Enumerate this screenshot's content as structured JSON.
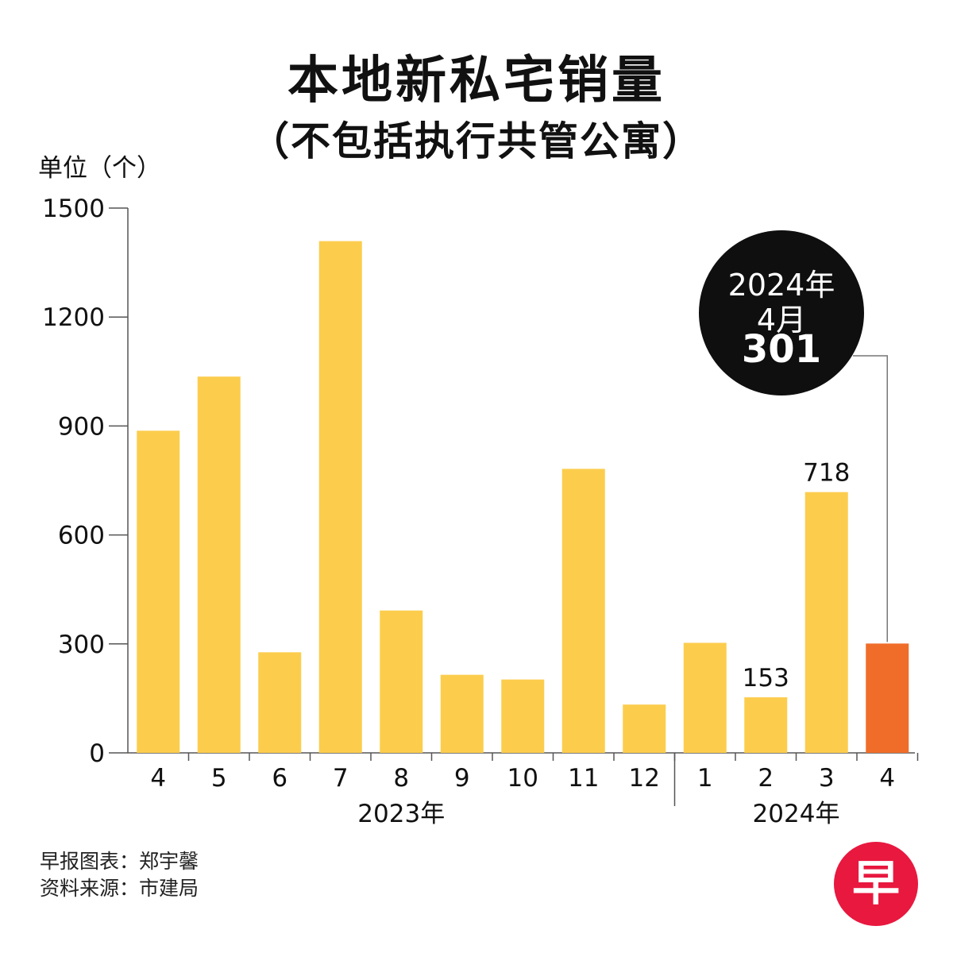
{
  "title": "本地新私宅销量",
  "subtitle": "（不包括执行共管公寓）",
  "chart_data": {
    "type": "bar",
    "ylabel": "单位（个）",
    "xlabel": "",
    "ylim": [
      0,
      1500
    ],
    "yticks": [
      "0",
      "300",
      "600",
      "900",
      "1200",
      "1500"
    ],
    "categories": [
      "4",
      "5",
      "6",
      "7",
      "8",
      "9",
      "10",
      "11",
      "12",
      "1",
      "2",
      "3",
      "4"
    ],
    "values": [
      887,
      1036,
      277,
      1409,
      392,
      215,
      202,
      782,
      133,
      303,
      153,
      718,
      301
    ],
    "year_groups": [
      {
        "label": "2023年",
        "months": 9
      },
      {
        "label": "2024年",
        "months": 4
      }
    ],
    "data_labels": [
      {
        "index": 10,
        "text": "153"
      },
      {
        "index": 11,
        "text": "718"
      }
    ],
    "highlight_index": 12,
    "colors": {
      "bar": "#fccd4d",
      "highlight": "#ef6d29",
      "axis": "#555555"
    },
    "grid": false,
    "legend": "none"
  },
  "callout": {
    "year": "2024年",
    "month": "4月",
    "value": "301"
  },
  "credits": {
    "line1": "早报图表：郑宇馨",
    "line2": "资料来源：市建局"
  },
  "logo": {
    "text": "早"
  }
}
